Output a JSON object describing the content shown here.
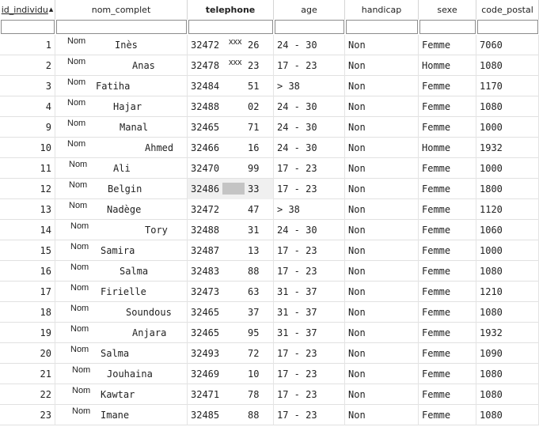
{
  "columns": [
    {
      "key": "id_individu",
      "label": "id_individu",
      "sorted": true,
      "sort_arrow": "▲"
    },
    {
      "key": "nom_complet",
      "label": "nom_complet"
    },
    {
      "key": "telephone",
      "label": "telephone",
      "bold": true
    },
    {
      "key": "age",
      "label": "age"
    },
    {
      "key": "handicap",
      "label": "handicap"
    },
    {
      "key": "sexe",
      "label": "sexe"
    },
    {
      "key": "code_postal",
      "label": "code_postal"
    }
  ],
  "filters": [
    "",
    "",
    "",
    "",
    "",
    "",
    ""
  ],
  "rows": [
    {
      "id": "1",
      "nom": "Nom",
      "prenom": "Inès",
      "tel_prefix": "32472",
      "tel_mask": "xxx",
      "tel_suffix": "26",
      "age": "24 - 30",
      "handicap": "Non",
      "sexe": "Femme",
      "code_postal": "7060"
    },
    {
      "id": "2",
      "nom": "Nom",
      "prenom": "Anas",
      "tel_prefix": "32478",
      "tel_mask": "xxx",
      "tel_suffix": "23",
      "age": "17 - 23",
      "handicap": "Non",
      "sexe": "Homme",
      "code_postal": "1080"
    },
    {
      "id": "3",
      "nom": "Nom",
      "prenom": "Fatiha",
      "tel_prefix": "32484",
      "tel_mask": "",
      "tel_suffix": "51",
      "age": "> 38",
      "handicap": "Non",
      "sexe": "Femme",
      "code_postal": "1170"
    },
    {
      "id": "4",
      "nom": "Nom",
      "prenom": "Hajar",
      "tel_prefix": "32488",
      "tel_mask": "",
      "tel_suffix": "02",
      "age": "24 - 30",
      "handicap": "Non",
      "sexe": "Femme",
      "code_postal": "1080"
    },
    {
      "id": "9",
      "nom": "Nom",
      "prenom": "Manal",
      "tel_prefix": "32465",
      "tel_mask": "",
      "tel_suffix": "71",
      "age": "24 - 30",
      "handicap": "Non",
      "sexe": "Femme",
      "code_postal": "1000"
    },
    {
      "id": "10",
      "nom": "Nom",
      "prenom": "Ahmed",
      "tel_prefix": "32466",
      "tel_mask": "",
      "tel_suffix": "16",
      "age": "24 - 30",
      "handicap": "Non",
      "sexe": "Homme",
      "code_postal": "1932"
    },
    {
      "id": "11",
      "nom": "Nom",
      "prenom": "Ali",
      "tel_prefix": "32470",
      "tel_mask": "",
      "tel_suffix": "99",
      "age": "17 - 23",
      "handicap": "Non",
      "sexe": "Femme",
      "code_postal": "1000"
    },
    {
      "id": "12",
      "nom": "Nom",
      "prenom": "Belgin",
      "tel_prefix": "32486",
      "tel_mask": "",
      "tel_suffix": "33",
      "age": "17 - 23",
      "handicap": "Non",
      "sexe": "Femme",
      "code_postal": "1800",
      "highlight": true
    },
    {
      "id": "13",
      "nom": "Nom",
      "prenom": "Nadège",
      "tel_prefix": "32472",
      "tel_mask": "",
      "tel_suffix": "47",
      "age": "> 38",
      "handicap": "Non",
      "sexe": "Femme",
      "code_postal": "1120"
    },
    {
      "id": "14",
      "nom": "Nom",
      "prenom": "Tory",
      "tel_prefix": "32488",
      "tel_mask": "",
      "tel_suffix": "31",
      "age": "24 - 30",
      "handicap": "Non",
      "sexe": "Femme",
      "code_postal": "1060"
    },
    {
      "id": "15",
      "nom": "Nom",
      "prenom": "Samira",
      "tel_prefix": "32487",
      "tel_mask": "",
      "tel_suffix": "13",
      "age": "17 - 23",
      "handicap": "Non",
      "sexe": "Femme",
      "code_postal": "1000"
    },
    {
      "id": "16",
      "nom": "Nom",
      "prenom": "Salma",
      "tel_prefix": "32483",
      "tel_mask": "",
      "tel_suffix": "88",
      "age": "17 - 23",
      "handicap": "Non",
      "sexe": "Femme",
      "code_postal": "1080"
    },
    {
      "id": "17",
      "nom": "Nom",
      "prenom": "Firielle",
      "tel_prefix": "32473",
      "tel_mask": "",
      "tel_suffix": "63",
      "age": "31 - 37",
      "handicap": "Non",
      "sexe": "Femme",
      "code_postal": "1210"
    },
    {
      "id": "18",
      "nom": "Nom",
      "prenom": "Soundous",
      "tel_prefix": "32465",
      "tel_mask": "",
      "tel_suffix": "37",
      "age": "31 - 37",
      "handicap": "Non",
      "sexe": "Femme",
      "code_postal": "1080"
    },
    {
      "id": "19",
      "nom": "Nom",
      "prenom": "Anjara",
      "tel_prefix": "32465",
      "tel_mask": "",
      "tel_suffix": "95",
      "age": "31 - 37",
      "handicap": "Non",
      "sexe": "Femme",
      "code_postal": "1932"
    },
    {
      "id": "20",
      "nom": "Nom",
      "prenom": "Salma",
      "tel_prefix": "32493",
      "tel_mask": "",
      "tel_suffix": "72",
      "age": "17 - 23",
      "handicap": "Non",
      "sexe": "Femme",
      "code_postal": "1090"
    },
    {
      "id": "21",
      "nom": "Nom",
      "prenom": "Jouhaina",
      "tel_prefix": "32469",
      "tel_mask": "",
      "tel_suffix": "10",
      "age": "17 - 23",
      "handicap": "Non",
      "sexe": "Femme",
      "code_postal": "1080"
    },
    {
      "id": "22",
      "nom": "Nom",
      "prenom": "Kawtar",
      "tel_prefix": "32471",
      "tel_mask": "",
      "tel_suffix": "78",
      "age": "17 - 23",
      "handicap": "Non",
      "sexe": "Femme",
      "code_postal": "1080"
    },
    {
      "id": "23",
      "nom": "Nom",
      "prenom": "Imane",
      "tel_prefix": "32485",
      "tel_mask": "",
      "tel_suffix": "88",
      "age": "17 - 23",
      "handicap": "Non",
      "sexe": "Femme",
      "code_postal": "1080"
    }
  ]
}
